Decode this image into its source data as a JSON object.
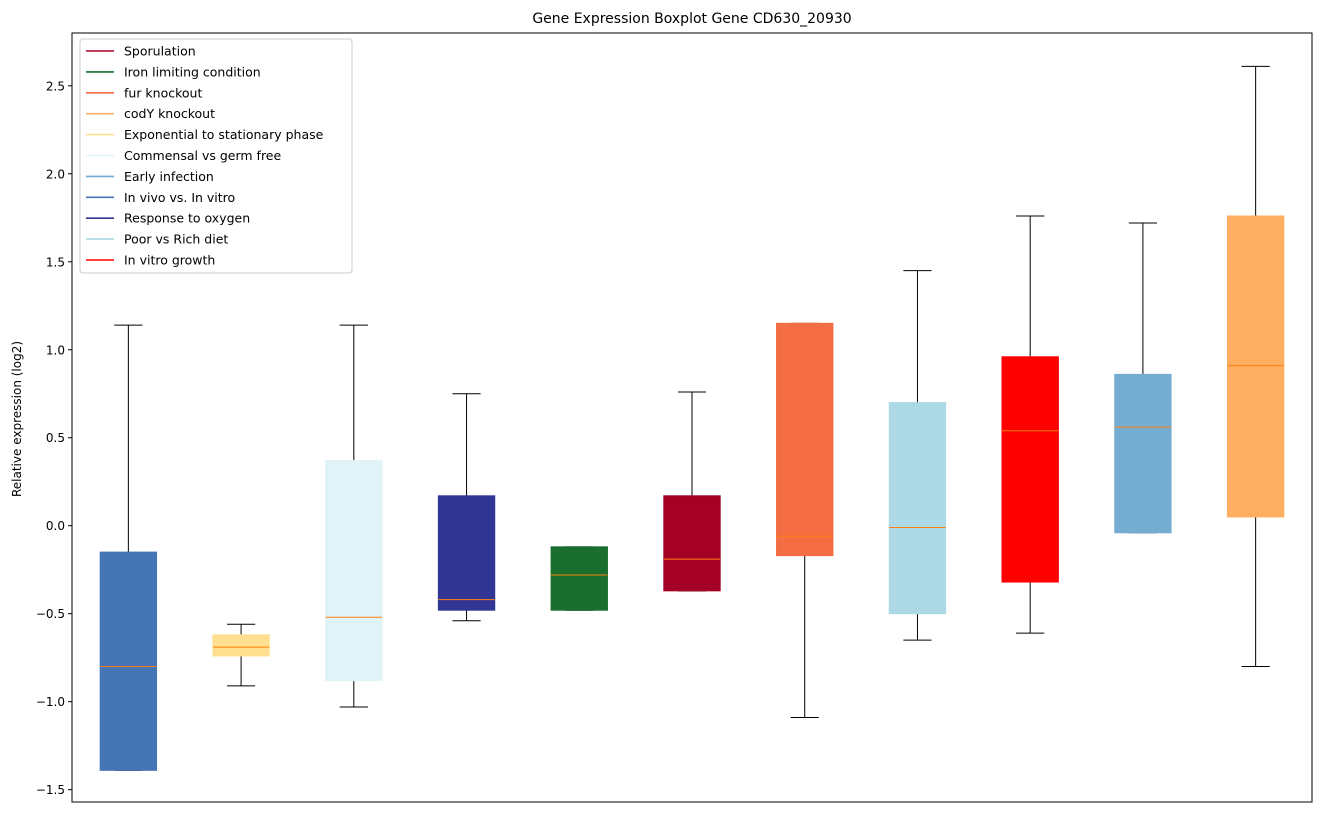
{
  "chart_data": {
    "type": "boxplot",
    "title": "Gene Expression Boxplot Gene CD630_20930",
    "xlabel": "",
    "ylabel": "Relative expression (log2)",
    "ylim": [
      -1.57,
      2.8
    ],
    "yticks": [
      -1.5,
      -1.0,
      -0.5,
      0.0,
      0.5,
      1.0,
      1.5,
      2.0,
      2.5
    ],
    "ytick_labels": [
      "−1.5",
      "−1.0",
      "−0.5",
      "0.0",
      "0.5",
      "1.0",
      "1.5",
      "2.0",
      "2.5"
    ],
    "legend_position": "top-left",
    "legend": [
      {
        "label": "Sporulation",
        "color": "#a50026"
      },
      {
        "label": "Iron limiting condition",
        "color": "#1a6e2e"
      },
      {
        "label": "fur knockout",
        "color": "#f46d43"
      },
      {
        "label": "codY knockout",
        "color": "#fdae61"
      },
      {
        "label": "Exponential to stationary phase",
        "color": "#fee090"
      },
      {
        "label": "Commensal vs germ free",
        "color": "#e0f3f8"
      },
      {
        "label": "Early infection",
        "color": "#74add1"
      },
      {
        "label": "In vivo vs. In vitro",
        "color": "#4575b4"
      },
      {
        "label": "Response to oxygen",
        "color": "#313695"
      },
      {
        "label": "Poor vs Rich diet",
        "color": "#add8e6"
      },
      {
        "label": "In vitro growth",
        "color": "#ff0000"
      }
    ],
    "median_color": "#ff7f0e",
    "whisker_color": "#000000",
    "boxes": [
      {
        "name": "In vivo vs. In vitro",
        "color": "#4575b4",
        "whislo": -1.39,
        "q1": -1.39,
        "med": -0.8,
        "q3": -0.15,
        "whishi": 1.14
      },
      {
        "name": "Exponential to stationary phase",
        "color": "#fee090",
        "whislo": -0.91,
        "q1": -0.74,
        "med": -0.69,
        "q3": -0.62,
        "whishi": -0.56
      },
      {
        "name": "Commensal vs germ free",
        "color": "#e0f3f8",
        "whislo": -1.03,
        "q1": -0.88,
        "med": -0.52,
        "q3": 0.37,
        "whishi": 1.14
      },
      {
        "name": "Response to oxygen",
        "color": "#313695",
        "whislo": -0.54,
        "q1": -0.48,
        "med": -0.42,
        "q3": 0.17,
        "whishi": 0.75
      },
      {
        "name": "Iron limiting condition",
        "color": "#1a6e2e",
        "whislo": -0.48,
        "q1": -0.48,
        "med": -0.28,
        "q3": -0.12,
        "whishi": -0.12
      },
      {
        "name": "Sporulation",
        "color": "#a50026",
        "whislo": -0.37,
        "q1": -0.37,
        "med": -0.19,
        "q3": 0.17,
        "whishi": 0.76
      },
      {
        "name": "fur knockout",
        "color": "#f46d43",
        "whislo": -1.09,
        "q1": -0.17,
        "med": -0.06,
        "q3": 1.15,
        "whishi": 1.15
      },
      {
        "name": "Poor vs Rich diet",
        "color": "#add8e6",
        "whislo": -0.65,
        "q1": -0.5,
        "med": -0.01,
        "q3": 0.7,
        "whishi": 1.45
      },
      {
        "name": "In vitro growth",
        "color": "#ff0000",
        "whislo": -0.61,
        "q1": -0.32,
        "med": 0.54,
        "q3": 0.96,
        "whishi": 1.76
      },
      {
        "name": "Early infection",
        "color": "#74add1",
        "whislo": -0.04,
        "q1": -0.04,
        "med": 0.56,
        "q3": 0.86,
        "whishi": 1.72
      },
      {
        "name": "codY knockout",
        "color": "#fdae61",
        "whislo": -0.8,
        "q1": 0.05,
        "med": 0.91,
        "q3": 1.76,
        "whishi": 2.61
      }
    ]
  }
}
